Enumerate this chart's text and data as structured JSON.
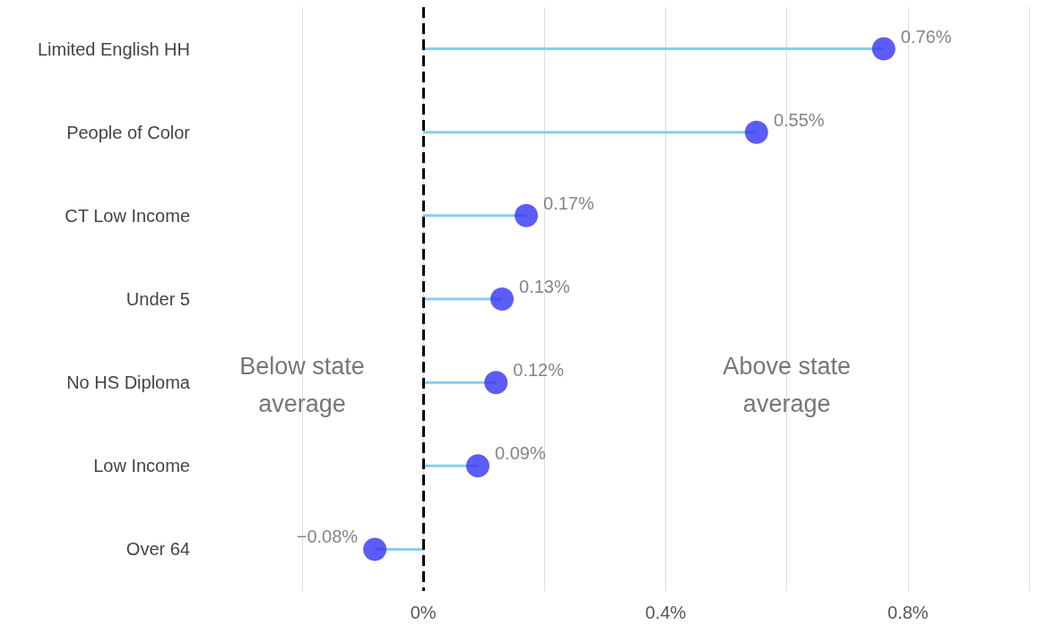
{
  "chart_data": {
    "type": "lollipop",
    "orientation": "horizontal",
    "categories": [
      "Limited English HH",
      "People of Color",
      "CT Low Income",
      "Under 5",
      "No HS Diploma",
      "Low Income",
      "Over 64"
    ],
    "series": [
      {
        "color": "#3333f5",
        "values": [
          0.76,
          0.55,
          0.17,
          0.13,
          0.12,
          0.09,
          -0.08
        ],
        "value_labels": [
          "0.76%",
          "0.55%",
          "0.17%",
          "0.13%",
          "0.12%",
          "0.09%",
          "−0.08%"
        ]
      }
    ],
    "xlim": [
      -0.2,
      1.0
    ],
    "xticks": [
      {
        "value": -0.2,
        "label": null
      },
      {
        "value": 0,
        "label": "0%"
      },
      {
        "value": 0.2,
        "label": null
      },
      {
        "value": 0.4,
        "label": "0.4%"
      },
      {
        "value": 0.6,
        "label": null
      },
      {
        "value": 0.8,
        "label": "0.8%"
      },
      {
        "value": 1.0,
        "label": null
      }
    ],
    "ref_lines": [
      {
        "axis": "x",
        "value": 0,
        "color": "#000000",
        "line_style": "dashed"
      }
    ],
    "annotations": [
      "Below state\naverage",
      "Above state\naverage"
    ],
    "grid": "x"
  }
}
